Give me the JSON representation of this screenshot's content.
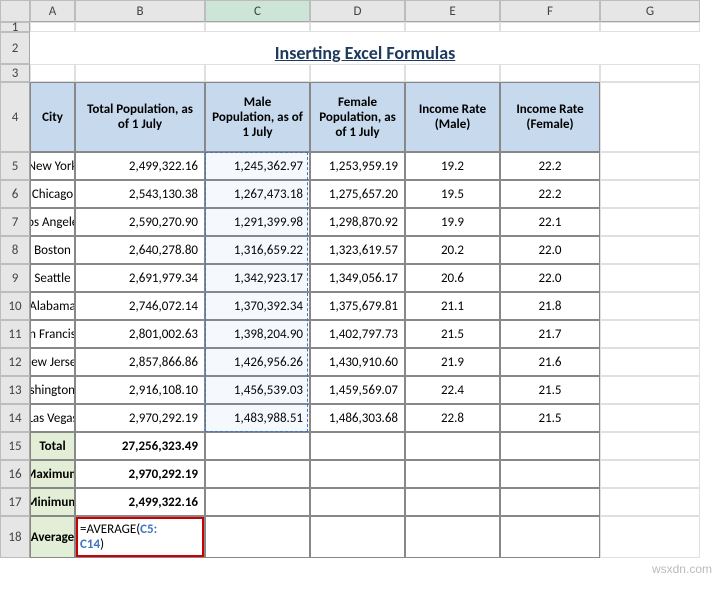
{
  "columns": [
    "A",
    "B",
    "C",
    "D",
    "E",
    "F",
    "G"
  ],
  "row_numbers": [
    1,
    2,
    3,
    4,
    5,
    6,
    7,
    8,
    9,
    10,
    11,
    12,
    13,
    14,
    15,
    16,
    17,
    18
  ],
  "title": "Inserting Excel Formulas",
  "headers": [
    "City",
    "Total Population, as of 1 July",
    "Male Population, as of 1 July",
    "Female Population, as of 1 July",
    "Income Rate (Male)",
    "Income Rate (Female)"
  ],
  "rows": [
    {
      "city": "New York",
      "total": "2,499,322.16",
      "male": "1,245,362.97",
      "female": "1,253,959.19",
      "irMale": "19.2",
      "irFemale": "22.2"
    },
    {
      "city": "Chicago",
      "total": "2,543,130.38",
      "male": "1,267,473.18",
      "female": "1,275,657.20",
      "irMale": "19.5",
      "irFemale": "22.2"
    },
    {
      "city": "Los Angeles",
      "total": "2,590,270.90",
      "male": "1,291,399.98",
      "female": "1,298,870.92",
      "irMale": "19.9",
      "irFemale": "22.1"
    },
    {
      "city": "Boston",
      "total": "2,640,278.80",
      "male": "1,316,659.22",
      "female": "1,323,619.57",
      "irMale": "20.2",
      "irFemale": "22.0"
    },
    {
      "city": "Seattle",
      "total": "2,691,979.34",
      "male": "1,342,923.17",
      "female": "1,349,056.17",
      "irMale": "20.6",
      "irFemale": "22.0"
    },
    {
      "city": "Alabama",
      "total": "2,746,072.14",
      "male": "1,370,392.34",
      "female": "1,375,679.81",
      "irMale": "21.1",
      "irFemale": "21.8"
    },
    {
      "city": "San Francisco",
      "total": "2,801,002.63",
      "male": "1,398,204.90",
      "female": "1,402,797.73",
      "irMale": "21.5",
      "irFemale": "21.7"
    },
    {
      "city": "New Jersey",
      "total": "2,857,866.86",
      "male": "1,426,956.26",
      "female": "1,430,910.60",
      "irMale": "21.9",
      "irFemale": "21.6"
    },
    {
      "city": "Washington DC",
      "total": "2,916,108.10",
      "male": "1,456,539.03",
      "female": "1,459,569.07",
      "irMale": "22.4",
      "irFemale": "21.5"
    },
    {
      "city": "Las Vegas",
      "total": "2,970,292.19",
      "male": "1,483,988.51",
      "female": "1,486,303.68",
      "irMale": "22.8",
      "irFemale": "21.5"
    }
  ],
  "summary": {
    "total_label": "Total",
    "total_val": "27,256,323.49",
    "max_label": "Maximum",
    "max_val": "2,970,292.19",
    "min_label": "Minimum",
    "min_val": "2,499,322.16",
    "avg_label": "Average"
  },
  "formula": {
    "prefix": "=AVERAGE(",
    "ref": "C5:C14",
    "suffix": ")"
  },
  "watermark": "wsxdn.com",
  "selected_col": "C",
  "colors": {
    "header_bg": "#c7d9ed",
    "summary_bg": "#e3eed7",
    "title_color": "#1f3a5f",
    "formula_box": "#cc0000",
    "ref_color": "#4074c4"
  }
}
